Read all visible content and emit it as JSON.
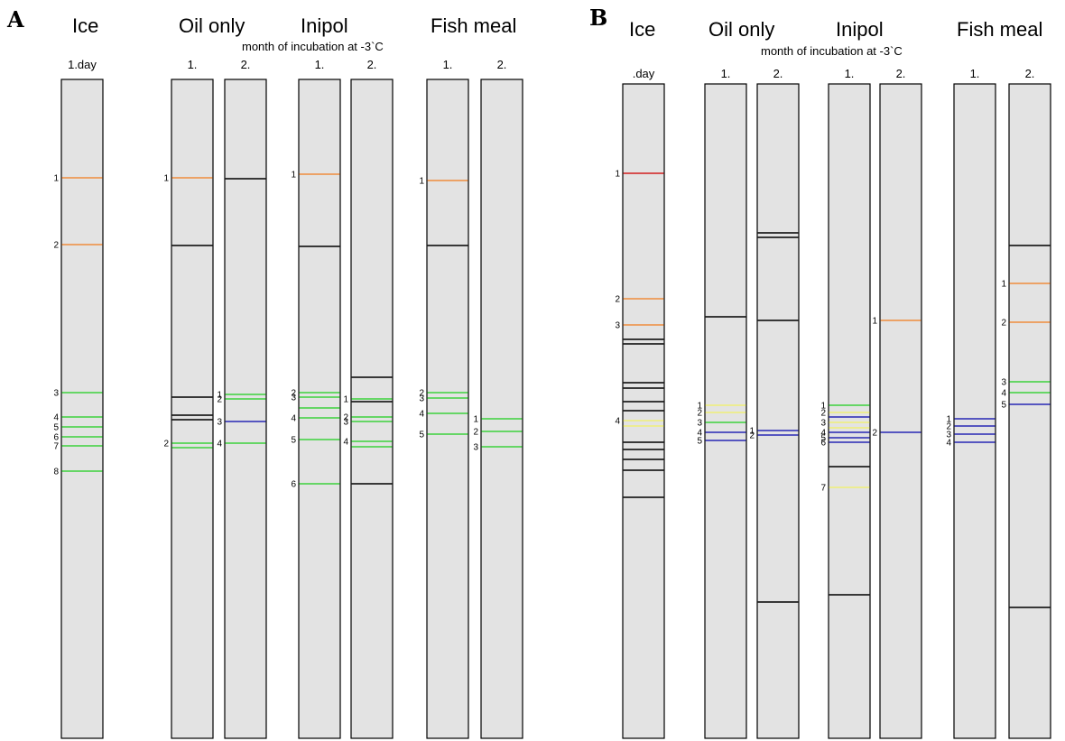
{
  "colors": {
    "orange": "#f08c3c",
    "green": "#3cd23c",
    "blue": "#2828b4",
    "black": "#000000",
    "yellow": "#f0f078",
    "red": "#d21e1e",
    "lane_fill": "#e3e3e3"
  },
  "panels": [
    {
      "letter": "A",
      "subtitle": "month of incubation at -3`C",
      "groups": [
        {
          "title": "Ice",
          "lanes": [
            {
              "label": "1.day",
              "bands": [
                {
                  "pos": 109,
                  "color": "orange",
                  "label": "1"
                },
                {
                  "pos": 183,
                  "color": "orange",
                  "label": "2"
                },
                {
                  "pos": 347,
                  "color": "green",
                  "label": "3"
                },
                {
                  "pos": 374,
                  "color": "green",
                  "label": "4"
                },
                {
                  "pos": 385,
                  "color": "green",
                  "label": "5"
                },
                {
                  "pos": 396,
                  "color": "green",
                  "label": "6"
                },
                {
                  "pos": 406,
                  "color": "green",
                  "label": "7"
                },
                {
                  "pos": 434,
                  "color": "green",
                  "label": "8"
                }
              ]
            }
          ]
        },
        {
          "title": "Oil only",
          "lanes": [
            {
              "label": "1.",
              "bands": [
                {
                  "pos": 109,
                  "color": "orange",
                  "label": "1"
                },
                {
                  "pos": 184,
                  "color": "black",
                  "label": ""
                },
                {
                  "pos": 352,
                  "color": "black",
                  "label": ""
                },
                {
                  "pos": 372,
                  "color": "black",
                  "label": ""
                },
                {
                  "pos": 377,
                  "color": "black",
                  "label": ""
                },
                {
                  "pos": 403,
                  "color": "green",
                  "label": "2"
                },
                {
                  "pos": 408,
                  "color": "green",
                  "label": ""
                }
              ]
            },
            {
              "label": "2.",
              "bands": [
                {
                  "pos": 110,
                  "color": "black",
                  "label": ""
                },
                {
                  "pos": 349,
                  "color": "green",
                  "label": "1"
                },
                {
                  "pos": 354,
                  "color": "green",
                  "label": "2"
                },
                {
                  "pos": 379,
                  "color": "blue",
                  "label": "3"
                },
                {
                  "pos": 403,
                  "color": "green",
                  "label": "4"
                }
              ]
            }
          ]
        },
        {
          "title": "Inipol",
          "lanes": [
            {
              "label": "1.",
              "bands": [
                {
                  "pos": 105,
                  "color": "orange",
                  "label": "1"
                },
                {
                  "pos": 185,
                  "color": "black",
                  "label": ""
                },
                {
                  "pos": 347,
                  "color": "green",
                  "label": "2"
                },
                {
                  "pos": 352,
                  "color": "green",
                  "label": "3"
                },
                {
                  "pos": 364,
                  "color": "green",
                  "label": ""
                },
                {
                  "pos": 375,
                  "color": "green",
                  "label": "4"
                },
                {
                  "pos": 399,
                  "color": "green",
                  "label": "5"
                },
                {
                  "pos": 448,
                  "color": "green",
                  "label": "6"
                }
              ]
            },
            {
              "label": "2.",
              "bands": [
                {
                  "pos": 330,
                  "color": "black",
                  "label": ""
                },
                {
                  "pos": 354,
                  "color": "green",
                  "label": "1"
                },
                {
                  "pos": 357,
                  "color": "black",
                  "label": ""
                },
                {
                  "pos": 374,
                  "color": "green",
                  "label": "2"
                },
                {
                  "pos": 379,
                  "color": "green",
                  "label": "3"
                },
                {
                  "pos": 401,
                  "color": "green",
                  "label": "4"
                },
                {
                  "pos": 407,
                  "color": "green",
                  "label": ""
                },
                {
                  "pos": 448,
                  "color": "black",
                  "label": ""
                }
              ]
            }
          ]
        },
        {
          "title": "Fish meal",
          "lanes": [
            {
              "label": "1.",
              "bands": [
                {
                  "pos": 112,
                  "color": "orange",
                  "label": "1"
                },
                {
                  "pos": 184,
                  "color": "black",
                  "label": ""
                },
                {
                  "pos": 347,
                  "color": "green",
                  "label": "2"
                },
                {
                  "pos": 353,
                  "color": "green",
                  "label": "3"
                },
                {
                  "pos": 370,
                  "color": "green",
                  "label": "4"
                },
                {
                  "pos": 393,
                  "color": "green",
                  "label": "5"
                }
              ]
            },
            {
              "label": "2.",
              "bands": [
                {
                  "pos": 376,
                  "color": "green",
                  "label": "1"
                },
                {
                  "pos": 390,
                  "color": "green",
                  "label": "2"
                },
                {
                  "pos": 407,
                  "color": "green",
                  "label": "3"
                }
              ]
            }
          ]
        }
      ]
    },
    {
      "letter": "B",
      "subtitle": "month of incubation at -3`C",
      "groups": [
        {
          "title": "Ice",
          "lanes": [
            {
              "label": ".day",
              "bands": [
                {
                  "pos": 99,
                  "color": "red",
                  "label": "1"
                },
                {
                  "pos": 238,
                  "color": "orange",
                  "label": "2"
                },
                {
                  "pos": 267,
                  "color": "orange",
                  "label": "3"
                },
                {
                  "pos": 283,
                  "color": "black",
                  "label": ""
                },
                {
                  "pos": 288,
                  "color": "black",
                  "label": ""
                },
                {
                  "pos": 331,
                  "color": "black",
                  "label": ""
                },
                {
                  "pos": 337,
                  "color": "black",
                  "label": ""
                },
                {
                  "pos": 352,
                  "color": "black",
                  "label": ""
                },
                {
                  "pos": 362,
                  "color": "black",
                  "label": ""
                },
                {
                  "pos": 373,
                  "color": "yellow",
                  "label": "4"
                },
                {
                  "pos": 379,
                  "color": "yellow",
                  "label": ""
                },
                {
                  "pos": 397,
                  "color": "black",
                  "label": ""
                },
                {
                  "pos": 405,
                  "color": "black",
                  "label": ""
                },
                {
                  "pos": 416,
                  "color": "black",
                  "label": ""
                },
                {
                  "pos": 428,
                  "color": "black",
                  "label": ""
                },
                {
                  "pos": 458,
                  "color": "black",
                  "label": ""
                }
              ]
            }
          ]
        },
        {
          "title": "Oil only",
          "lanes": [
            {
              "label": "1.",
              "bands": [
                {
                  "pos": 258,
                  "color": "black",
                  "label": ""
                },
                {
                  "pos": 356,
                  "color": "yellow",
                  "label": "1"
                },
                {
                  "pos": 364,
                  "color": "yellow",
                  "label": "2"
                },
                {
                  "pos": 375,
                  "color": "green",
                  "label": "3"
                },
                {
                  "pos": 386,
                  "color": "blue",
                  "label": "4"
                },
                {
                  "pos": 395,
                  "color": "blue",
                  "label": "5"
                }
              ]
            },
            {
              "label": "2.",
              "bands": [
                {
                  "pos": 165,
                  "color": "black",
                  "label": ""
                },
                {
                  "pos": 170,
                  "color": "black",
                  "label": ""
                },
                {
                  "pos": 262,
                  "color": "black",
                  "label": ""
                },
                {
                  "pos": 384,
                  "color": "blue",
                  "label": "1"
                },
                {
                  "pos": 389,
                  "color": "blue",
                  "label": "2"
                },
                {
                  "pos": 574,
                  "color": "black",
                  "label": ""
                }
              ]
            }
          ]
        },
        {
          "title": "Inipol",
          "lanes": [
            {
              "label": "1.",
              "bands": [
                {
                  "pos": 356,
                  "color": "green",
                  "label": "1"
                },
                {
                  "pos": 364,
                  "color": "yellow",
                  "label": "2"
                },
                {
                  "pos": 369,
                  "color": "blue",
                  "label": ""
                },
                {
                  "pos": 375,
                  "color": "yellow",
                  "label": "3"
                },
                {
                  "pos": 381,
                  "color": "yellow",
                  "label": ""
                },
                {
                  "pos": 386,
                  "color": "blue",
                  "label": "4"
                },
                {
                  "pos": 392,
                  "color": "blue",
                  "label": "5"
                },
                {
                  "pos": 397,
                  "color": "blue",
                  "label": "6"
                },
                {
                  "pos": 424,
                  "color": "black",
                  "label": ""
                },
                {
                  "pos": 447,
                  "color": "yellow",
                  "label": "7"
                },
                {
                  "pos": 566,
                  "color": "black",
                  "label": ""
                }
              ]
            },
            {
              "label": "2.",
              "bands": [
                {
                  "pos": 262,
                  "color": "orange",
                  "label": "1"
                },
                {
                  "pos": 386,
                  "color": "blue",
                  "label": "2"
                }
              ]
            }
          ]
        },
        {
          "title": "Fish meal",
          "lanes": [
            {
              "label": "1.",
              "bands": [
                {
                  "pos": 371,
                  "color": "blue",
                  "label": "1"
                },
                {
                  "pos": 379,
                  "color": "blue",
                  "label": "2"
                },
                {
                  "pos": 388,
                  "color": "blue",
                  "label": "3"
                },
                {
                  "pos": 397,
                  "color": "blue",
                  "label": "4"
                }
              ]
            },
            {
              "label": "2.",
              "bands": [
                {
                  "pos": 179,
                  "color": "black",
                  "label": ""
                },
                {
                  "pos": 221,
                  "color": "orange",
                  "label": "1"
                },
                {
                  "pos": 264,
                  "color": "orange",
                  "label": "2"
                },
                {
                  "pos": 330,
                  "color": "green",
                  "label": "3"
                },
                {
                  "pos": 342,
                  "color": "green",
                  "label": "4"
                },
                {
                  "pos": 355,
                  "color": "blue",
                  "label": "5"
                },
                {
                  "pos": 580,
                  "color": "black",
                  "label": ""
                }
              ]
            }
          ]
        }
      ]
    }
  ]
}
